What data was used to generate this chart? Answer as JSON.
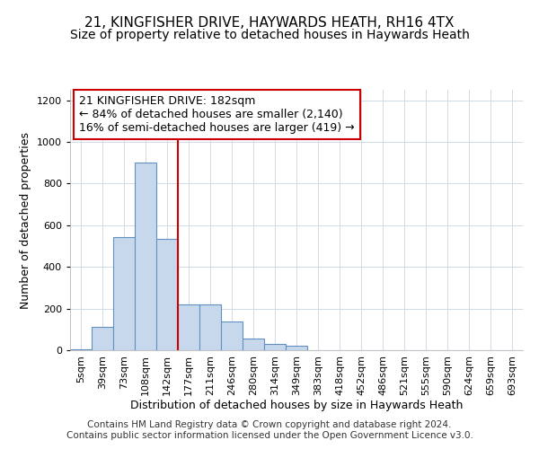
{
  "title_line1": "21, KINGFISHER DRIVE, HAYWARDS HEATH, RH16 4TX",
  "title_line2": "Size of property relative to detached houses in Haywards Heath",
  "xlabel": "Distribution of detached houses by size in Haywards Heath",
  "ylabel": "Number of detached properties",
  "bar_color": "#c8d8ec",
  "bar_edge_color": "#6090c0",
  "categories": [
    "5sqm",
    "39sqm",
    "73sqm",
    "108sqm",
    "142sqm",
    "177sqm",
    "211sqm",
    "246sqm",
    "280sqm",
    "314sqm",
    "349sqm",
    "383sqm",
    "418sqm",
    "452sqm",
    "486sqm",
    "521sqm",
    "555sqm",
    "590sqm",
    "624sqm",
    "659sqm",
    "693sqm"
  ],
  "values": [
    5,
    110,
    545,
    900,
    535,
    220,
    220,
    138,
    55,
    32,
    20,
    0,
    0,
    0,
    0,
    0,
    0,
    0,
    0,
    0,
    0
  ],
  "vline_x": 4.5,
  "annotation_text": "21 KINGFISHER DRIVE: 182sqm\n← 84% of detached houses are smaller (2,140)\n16% of semi-detached houses are larger (419) →",
  "annotation_box_color": "#ffffff",
  "annotation_box_edge_color": "#cc0000",
  "vline_color": "#cc0000",
  "ylim": [
    0,
    1250
  ],
  "yticks": [
    0,
    200,
    400,
    600,
    800,
    1000,
    1200
  ],
  "grid_color": "#d0dae8",
  "bg_color": "#ffffff",
  "footer_text": "Contains HM Land Registry data © Crown copyright and database right 2024.\nContains public sector information licensed under the Open Government Licence v3.0.",
  "title_fontsize": 11,
  "subtitle_fontsize": 10,
  "xlabel_fontsize": 9,
  "ylabel_fontsize": 9,
  "tick_fontsize": 8,
  "annotation_fontsize": 9,
  "footer_fontsize": 7.5
}
